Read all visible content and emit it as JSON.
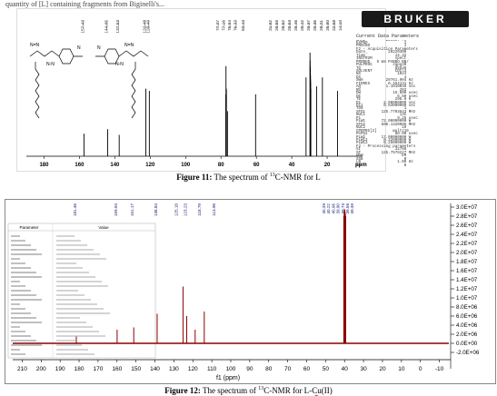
{
  "top_fragment": "quantity of [L] containing fragments from Biginelli's...",
  "figure11": {
    "caption_bold": "Figure 11:",
    "caption_pre": " The spectrum of ",
    "caption_sup": "13",
    "caption_post": "C-NMR for L",
    "logo": "BRUKER",
    "axis_label": "ppm",
    "x_ticks": [
      "180",
      "160",
      "140",
      "120",
      "100",
      "80",
      "60",
      "40",
      "20"
    ],
    "peak_labels": [
      "157.43",
      "144.05",
      "137.53",
      "122.48",
      "120.49",
      "77.27",
      "77.16",
      "76.94",
      "76.33",
      "60.43",
      "31.92",
      "29.69",
      "29.62",
      "29.53",
      "29.46",
      "29.42",
      "29.37",
      "29.35",
      "29.21",
      "25.90",
      "22.68",
      "14.10"
    ],
    "chart_data": {
      "type": "line",
      "x_axis": "ppm",
      "xlim": [
        190,
        0
      ],
      "peaks": [
        {
          "x": 157.43,
          "h": 0.2
        },
        {
          "x": 144.05,
          "h": 0.24
        },
        {
          "x": 137.53,
          "h": 0.19
        },
        {
          "x": 122.48,
          "h": 0.6
        },
        {
          "x": 120.49,
          "h": 0.58
        },
        {
          "x": 77.27,
          "h": 0.55
        },
        {
          "x": 77.16,
          "h": 0.8
        },
        {
          "x": 76.94,
          "h": 0.6
        },
        {
          "x": 76.33,
          "h": 0.4
        },
        {
          "x": 60.43,
          "h": 0.55
        },
        {
          "x": 31.92,
          "h": 0.7
        },
        {
          "x": 29.69,
          "h": 0.92
        },
        {
          "x": 29.62,
          "h": 0.85
        },
        {
          "x": 29.53,
          "h": 0.8
        },
        {
          "x": 29.46,
          "h": 0.78
        },
        {
          "x": 29.42,
          "h": 0.72
        },
        {
          "x": 29.37,
          "h": 0.68
        },
        {
          "x": 29.35,
          "h": 0.65
        },
        {
          "x": 29.21,
          "h": 0.6
        },
        {
          "x": 25.9,
          "h": 0.62
        },
        {
          "x": 22.68,
          "h": 0.7
        },
        {
          "x": 14.1,
          "h": 0.58
        }
      ]
    },
    "params_title": "Current Data Parameters",
    "params": [
      "NAME         220307-rh",
      "EXPNO                1",
      "PROCNO               1",
      "F2 - Acquisition Parameters",
      "Date_         20220308",
      "Time             14.32",
      "INSTRUM          spect",
      "PROBHD   5 mm PABBO BB/",
      "PULPROG         zgpg30",
      "TD               65536",
      "SOLVENT          CDCl3",
      "NS                1024",
      "DS                   4",
      "SWH          29761.904 Hz",
      "FIDRES        0.454131 Hz",
      "AQ           1.1010048 sec",
      "RG                 203",
      "DW              16.800 usec",
      "DE                6.50 usec",
      "TE               298.0 K",
      "D1          2.00000000 sec",
      "D11         0.03000000 sec",
      "TD0                  1",
      "SFO1       125.7703643 MHz",
      "NUC1               13C",
      "P1                9.25 usec",
      "PLW1       72.00000000 W",
      "SFO2       500.1320005 MHz",
      "NUC2                1H",
      "CPDPRG[2]       waltz16",
      "PCPD2            80.00 usec",
      "PLW2       17.00000000 W",
      "PLW12       0.32000000 W",
      "PLW13       0.26000000 W",
      "F2 - Processing parameters",
      "SI               32768",
      "SF         125.7578227 MHz",
      "WDW                 EM",
      "SSB                  0",
      "LB                1.00 Hz",
      "GB                   0",
      "PC                1.40"
    ]
  },
  "figure12": {
    "caption_bold": "Figure 12:",
    "caption_pre": " The spectrum of ",
    "caption_sup": "13",
    "caption_post": "C-NMR for L-",
    "caption_metal": "Cu",
    "caption_tail": "(II)",
    "axis_label": "f1 (ppm)",
    "x_ticks": [
      "210",
      "200",
      "190",
      "180",
      "170",
      "160",
      "150",
      "140",
      "130",
      "120",
      "110",
      "100",
      "90",
      "80",
      "70",
      "60",
      "50",
      "40",
      "30",
      "20",
      "10",
      "0",
      "-10"
    ],
    "y_ticks": [
      "3.0E+07",
      "2.8E+07",
      "2.6E+07",
      "2.4E+07",
      "2.2E+07",
      "2.0E+07",
      "1.8E+07",
      "1.6E+07",
      "1.4E+07",
      "1.2E+07",
      "1.0E+07",
      "8.0E+06",
      "6.0E+06",
      "4.0E+06",
      "2.0E+06",
      "0.0E+00",
      "-2.0E+06"
    ],
    "peak_labels_left": [
      "181.46",
      "159.94",
      "151.17",
      "138.84",
      "125.18",
      "123.23",
      "118.79",
      "113.98"
    ],
    "peak_labels_right": [
      "40.39",
      "40.22",
      "40.06",
      "39.90",
      "39.73",
      "39.56",
      "39.39"
    ],
    "param_table_title": "Parameter",
    "param_table_value_title": "Value",
    "chart_data": {
      "type": "line",
      "x_axis": "f1 (ppm)",
      "xlim": [
        215,
        -15
      ],
      "ylim": [
        -2000000,
        30000000
      ],
      "peaks": [
        {
          "x": 181.46,
          "y": 1500000
        },
        {
          "x": 159.94,
          "y": 3000000
        },
        {
          "x": 151.17,
          "y": 3500000
        },
        {
          "x": 138.84,
          "y": 6500000
        },
        {
          "x": 125.18,
          "y": 12500000
        },
        {
          "x": 123.23,
          "y": 6000000
        },
        {
          "x": 118.79,
          "y": 3000000
        },
        {
          "x": 113.98,
          "y": 7000000
        },
        {
          "x": 40.39,
          "y": 28000000
        },
        {
          "x": 40.22,
          "y": 29000000
        },
        {
          "x": 40.06,
          "y": 29500000
        },
        {
          "x": 39.9,
          "y": 29500000
        },
        {
          "x": 39.73,
          "y": 29000000
        },
        {
          "x": 39.56,
          "y": 28500000
        },
        {
          "x": 39.39,
          "y": 28000000
        }
      ]
    }
  }
}
